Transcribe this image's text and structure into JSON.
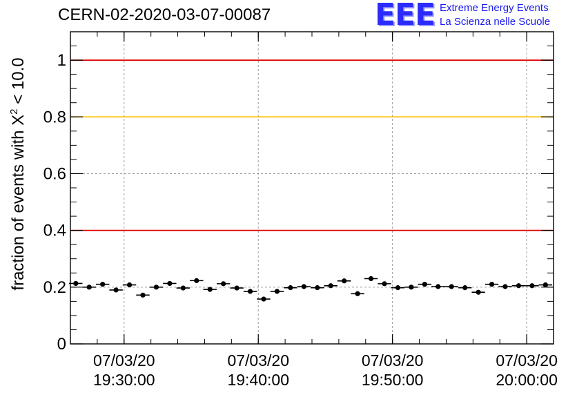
{
  "header": {
    "run_title": "CERN-02-2020-03-07-00087"
  },
  "logo": {
    "mark": "EEE",
    "line1": "Extreme Energy Events",
    "line2": "La Scienza nelle Scuole",
    "color": "#2b2bff"
  },
  "chart_data": {
    "type": "scatter",
    "title": "CERN-02-2020-03-07-00087",
    "ylabel_prefix": "fraction of events with X",
    "ylabel_sup": "2",
    "ylabel_suffix": " < 10.0",
    "ylim": [
      0,
      1.1
    ],
    "yticks": [
      0,
      0.2,
      0.4,
      0.6,
      0.8,
      1
    ],
    "yticklabels": [
      "0",
      "0.2",
      "0.4",
      "0.6",
      "0.8",
      "1"
    ],
    "xlim": [
      "07/03/20 19:26:00",
      "07/03/20 20:02:00"
    ],
    "xticks": [
      {
        "date": "07/03/20",
        "time": "19:30:00"
      },
      {
        "date": "07/03/20",
        "time": "19:40:00"
      },
      {
        "date": "07/03/20",
        "time": "19:50:00"
      },
      {
        "date": "07/03/20",
        "time": "20:00:00"
      }
    ],
    "grid": true,
    "reference_lines": [
      {
        "y": 1.0,
        "color": "#e00000"
      },
      {
        "y": 0.8,
        "color": "#ffc000"
      },
      {
        "y": 0.4,
        "color": "#e00000"
      }
    ],
    "bin_width_minutes": 1,
    "series": [
      {
        "x": [
          "19:26:24",
          "19:27:24",
          "19:28:24",
          "19:29:24",
          "19:30:24",
          "19:31:24",
          "19:32:24",
          "19:33:24",
          "19:34:24",
          "19:35:24",
          "19:36:24",
          "19:37:24",
          "19:38:24",
          "19:39:24",
          "19:40:24",
          "19:41:24",
          "19:42:24",
          "19:43:24",
          "19:44:24",
          "19:45:24",
          "19:46:24",
          "19:47:24",
          "19:48:24",
          "19:49:24",
          "19:50:24",
          "19:51:24",
          "19:52:24",
          "19:53:24",
          "19:54:24",
          "19:55:24",
          "19:56:24",
          "19:57:24",
          "19:58:24",
          "19:59:24",
          "20:00:24",
          "20:01:24"
        ],
        "y": [
          0.213,
          0.2,
          0.21,
          0.19,
          0.208,
          0.172,
          0.2,
          0.213,
          0.197,
          0.223,
          0.192,
          0.212,
          0.197,
          0.185,
          0.158,
          0.185,
          0.198,
          0.202,
          0.198,
          0.205,
          0.222,
          0.177,
          0.23,
          0.212,
          0.198,
          0.2,
          0.21,
          0.202,
          0.202,
          0.198,
          0.182,
          0.21,
          0.202,
          0.205,
          0.205,
          0.208
        ],
        "yerr": 0.008
      }
    ]
  }
}
